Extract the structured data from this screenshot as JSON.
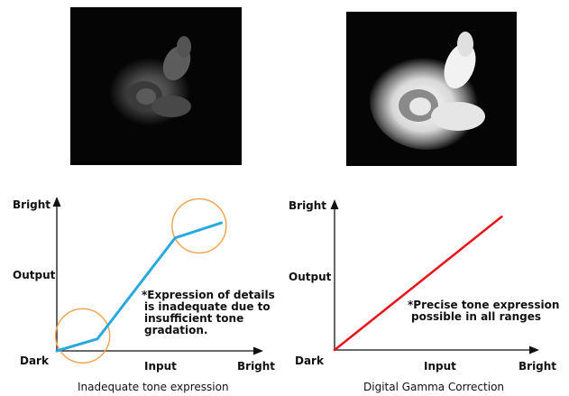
{
  "colors": {
    "curve_left": "#29a8e0",
    "curve_right": "#e8141c",
    "highlight_circle": "#f0a24a",
    "axis": "#111111"
  },
  "photos": {
    "left_icon": "dim-galaxy-photo",
    "right_icon": "bright-galaxy-photo"
  },
  "chart_data": [
    {
      "type": "line",
      "caption": "Inadequate tone expression",
      "xlabel": "Input",
      "ylabel": "Output",
      "x_low_label": "Dark",
      "x_high_label": "Bright",
      "y_high_label": "Bright",
      "xlim": [
        0,
        1
      ],
      "ylim": [
        0,
        1
      ],
      "grid": false,
      "series": [
        {
          "values": [
            [
              0,
              0
            ],
            [
              0.22,
              0.08
            ],
            [
              0.64,
              0.75
            ],
            [
              0.89,
              0.85
            ]
          ]
        }
      ],
      "highlights": [
        {
          "center": [
            0.14,
            0.1
          ]
        },
        {
          "center": [
            0.77,
            0.83
          ]
        }
      ],
      "annotation": [
        "*Expression of details",
        "is inadequate due to",
        "insufficient tone",
        "gradation."
      ]
    },
    {
      "type": "line",
      "caption": "Digital Gamma Correction",
      "xlabel": "Input",
      "ylabel": "Output",
      "x_low_label": "Dark",
      "x_high_label": "Bright",
      "y_high_label": "Bright",
      "xlim": [
        0,
        1
      ],
      "ylim": [
        0,
        1
      ],
      "grid": false,
      "series": [
        {
          "values": [
            [
              0,
              0
            ],
            [
              0.85,
              0.83
            ]
          ]
        }
      ],
      "annotation": [
        "*Precise tone expression",
        "possible in all ranges"
      ]
    }
  ]
}
